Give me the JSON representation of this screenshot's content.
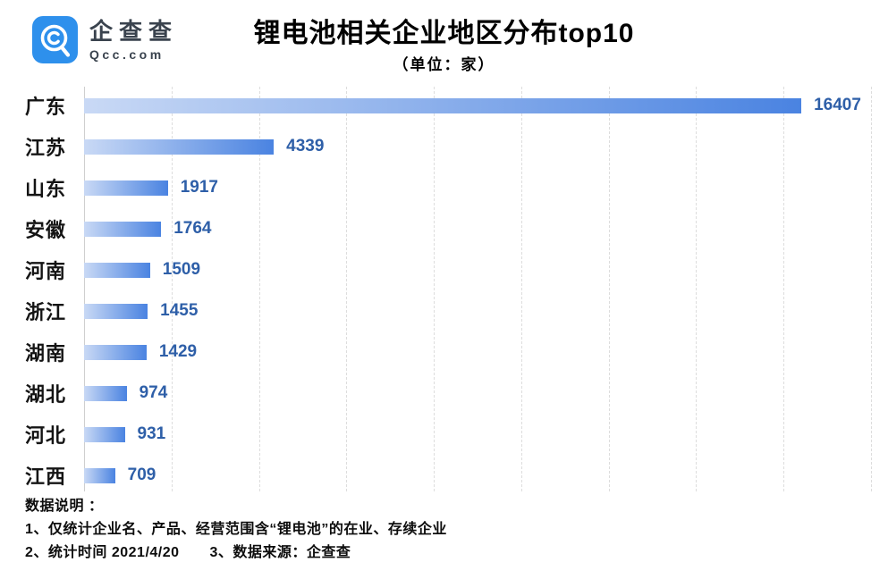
{
  "brand": {
    "name": "企查查",
    "domain": "Qcc.com",
    "logo_color": "#2e90ec"
  },
  "chart_data": {
    "type": "bar",
    "orientation": "horizontal",
    "title": "锂电池相关企业地区分布top10",
    "subtitle": "（单位：家）",
    "unit": "家",
    "categories": [
      "广东",
      "江苏",
      "山东",
      "安徽",
      "河南",
      "浙江",
      "湖南",
      "湖北",
      "河北",
      "江西"
    ],
    "values": [
      16407,
      4339,
      1917,
      1764,
      1509,
      1455,
      1429,
      974,
      931,
      709
    ],
    "xlim": [
      0,
      18000
    ],
    "grid_interval": 2000,
    "grid": "vertical-dashed",
    "legend": "none",
    "value_label_position": "right-of-bar",
    "colors": {
      "bar_gradient_start": "#c9d9f5",
      "bar_gradient_end": "#4a83e1",
      "value_label": "#2e5fa8",
      "category_label": "#141414",
      "gridline": "#dddddd",
      "axis_line": "#cfcfcf"
    }
  },
  "notes": {
    "heading": "数据说明 ：",
    "line1": "1、仅统计企业名、产品、经营范围含“锂电池”的在业、存续企业",
    "line2": "2、统计时间 2021/4/20",
    "line3": "3、数据来源：企查查"
  }
}
